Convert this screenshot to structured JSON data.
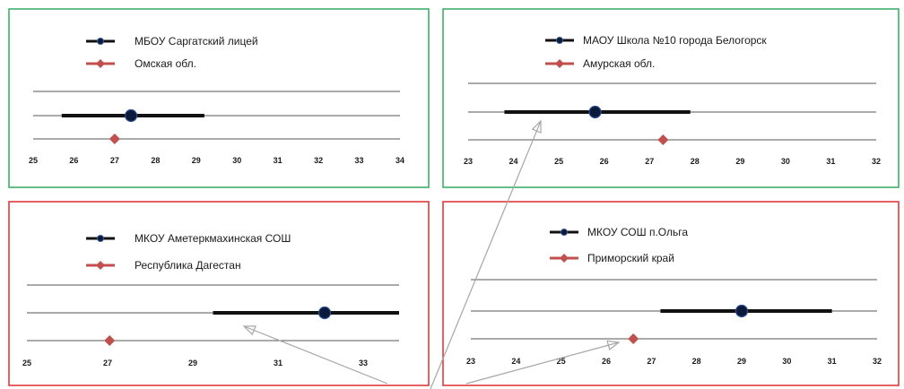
{
  "colors": {
    "green_frame": "#3fb06a",
    "red_frame": "#e03a3a",
    "school_series": "#111111",
    "school_marker_fill": "#0b1a3a",
    "region_series": "#c0504d",
    "grid_line": "#555555",
    "arrow": "#a6a6a6"
  },
  "chart_data": [
    {
      "type": "scatter",
      "frame": "green",
      "title": "",
      "xlabel": "",
      "ylabel": "",
      "ticks": [
        25,
        26,
        27,
        28,
        29,
        30,
        31,
        32,
        33,
        34
      ],
      "xlim": [
        25,
        34
      ],
      "legend": [
        "МБОУ Саргатский лицей",
        "Омская обл."
      ],
      "series": [
        {
          "name": "МБОУ Саргатский лицей",
          "value": 27.4,
          "range": [
            25.7,
            29.2
          ]
        },
        {
          "name": "Омская обл.",
          "value": 27.0
        }
      ]
    },
    {
      "type": "scatter",
      "frame": "green",
      "title": "",
      "xlabel": "",
      "ylabel": "",
      "ticks": [
        23,
        24,
        25,
        26,
        27,
        28,
        29,
        30,
        31,
        32
      ],
      "xlim": [
        23,
        32
      ],
      "legend": [
        "МАОУ Школа №10 города Белогорск",
        "Амурская обл."
      ],
      "series": [
        {
          "name": "МАОУ Школа №10 города Белогорск",
          "value": 25.8,
          "range": [
            23.8,
            27.9
          ]
        },
        {
          "name": "Амурская обл.",
          "value": 27.3
        }
      ]
    },
    {
      "type": "scatter",
      "frame": "red",
      "title": "",
      "xlabel": "",
      "ylabel": "",
      "ticks": [
        25,
        27,
        29,
        31,
        33
      ],
      "xlim": [
        25,
        34
      ],
      "legend": [
        "МКОУ Аметеркмахинская СОШ",
        "Республика Дагестан"
      ],
      "series": [
        {
          "name": "МКОУ Аметеркмахинская СОШ",
          "value": 32.2,
          "range": [
            29.5,
            34.0
          ]
        },
        {
          "name": "Республика Дагестан",
          "value": 27.0
        }
      ]
    },
    {
      "type": "scatter",
      "frame": "red",
      "title": "",
      "xlabel": "",
      "ylabel": "",
      "ticks": [
        23,
        24,
        25,
        26,
        27,
        28,
        29,
        30,
        31,
        32
      ],
      "xlim": [
        23,
        32
      ],
      "legend": [
        "МКОУ СОШ п.Ольга",
        "Приморский край"
      ],
      "series": [
        {
          "name": "МКОУ СОШ п.Ольга",
          "value": 29.0,
          "range": [
            27.2,
            31.0
          ]
        },
        {
          "name": "Приморский край",
          "value": 26.6
        }
      ]
    }
  ]
}
